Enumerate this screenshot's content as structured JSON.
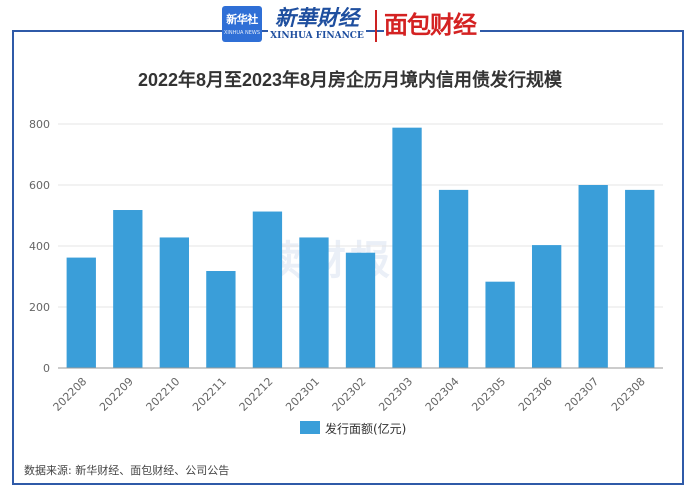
{
  "header": {
    "logo_xinhuashe": {
      "main": "新华社",
      "sub": "XINHUA NEWS"
    },
    "logo_xinhua_finance": {
      "cn": "新華財经",
      "en": "XINHUA FINANCE"
    },
    "logo_mianbao": "面包财经",
    "frame_color": "#2f5aa8",
    "brand_red": "#d42222"
  },
  "chart_data": {
    "type": "bar",
    "title": "2022年8月至2023年8月房企历月境内信用债发行规模",
    "categories": [
      "202208",
      "202209",
      "202210",
      "202211",
      "202212",
      "202301",
      "202302",
      "202303",
      "202304",
      "202305",
      "202306",
      "202307",
      "202308"
    ],
    "series": [
      {
        "name": "发行面额(亿元)",
        "values": [
          362,
          518,
          428,
          318,
          513,
          428,
          378,
          788,
          584,
          283,
          403,
          600,
          584
        ],
        "color": "#3a9ed9"
      }
    ],
    "ylim": [
      0,
      800
    ],
    "yticks": [
      0,
      200,
      400,
      600,
      800
    ],
    "xlabel": "",
    "ylabel": "",
    "grid": true,
    "legend_position": "bottom-center",
    "tick_rotation": -45
  },
  "watermark": "读财报",
  "source": "数据来源: 新华财经、面包财经、公司公告"
}
